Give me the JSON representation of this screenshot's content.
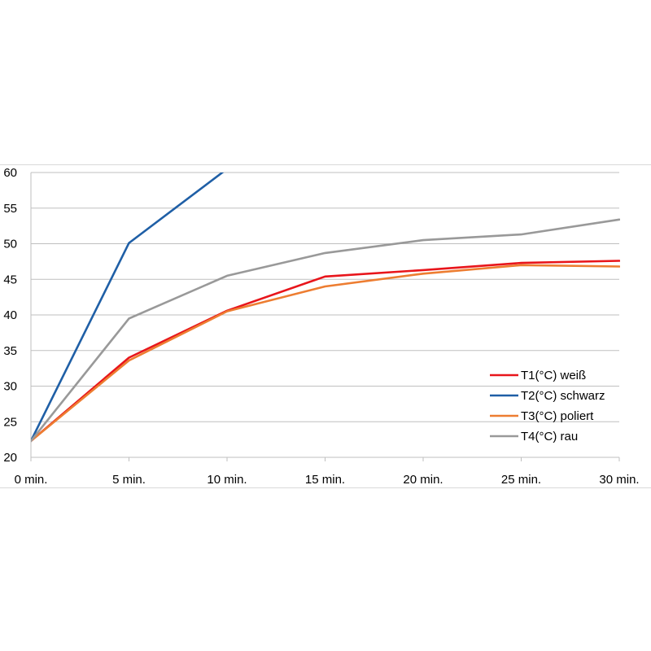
{
  "chart_data": {
    "type": "line",
    "categories": [
      "0 min.",
      "5 min.",
      "10 min.",
      "15 min.",
      "20 min.",
      "25 min.",
      "30 min."
    ],
    "ylim": [
      20,
      60
    ],
    "yticks": [
      20,
      25,
      30,
      35,
      40,
      45,
      50,
      55,
      60
    ],
    "grid": true,
    "legend_position": "bottom-right",
    "title": "",
    "xlabel": "",
    "ylabel": "",
    "series": [
      {
        "name": "T1(°C) weiß",
        "color": "#e8151b",
        "values": [
          22.3,
          34.0,
          40.6,
          45.4,
          46.3,
          47.3,
          47.6
        ]
      },
      {
        "name": "T2(°C) schwarz",
        "color": "#1f5fa6",
        "values": [
          22.3,
          50.1,
          60.5,
          null,
          null,
          null,
          null
        ]
      },
      {
        "name": "T3(°C) poliert",
        "color": "#ed7d31",
        "values": [
          22.3,
          33.6,
          40.5,
          44.0,
          45.8,
          47.0,
          46.8
        ]
      },
      {
        "name": "T4(°C) rau",
        "color": "#999999",
        "values": [
          22.3,
          39.5,
          45.5,
          48.7,
          50.5,
          51.3,
          53.4
        ]
      }
    ]
  }
}
